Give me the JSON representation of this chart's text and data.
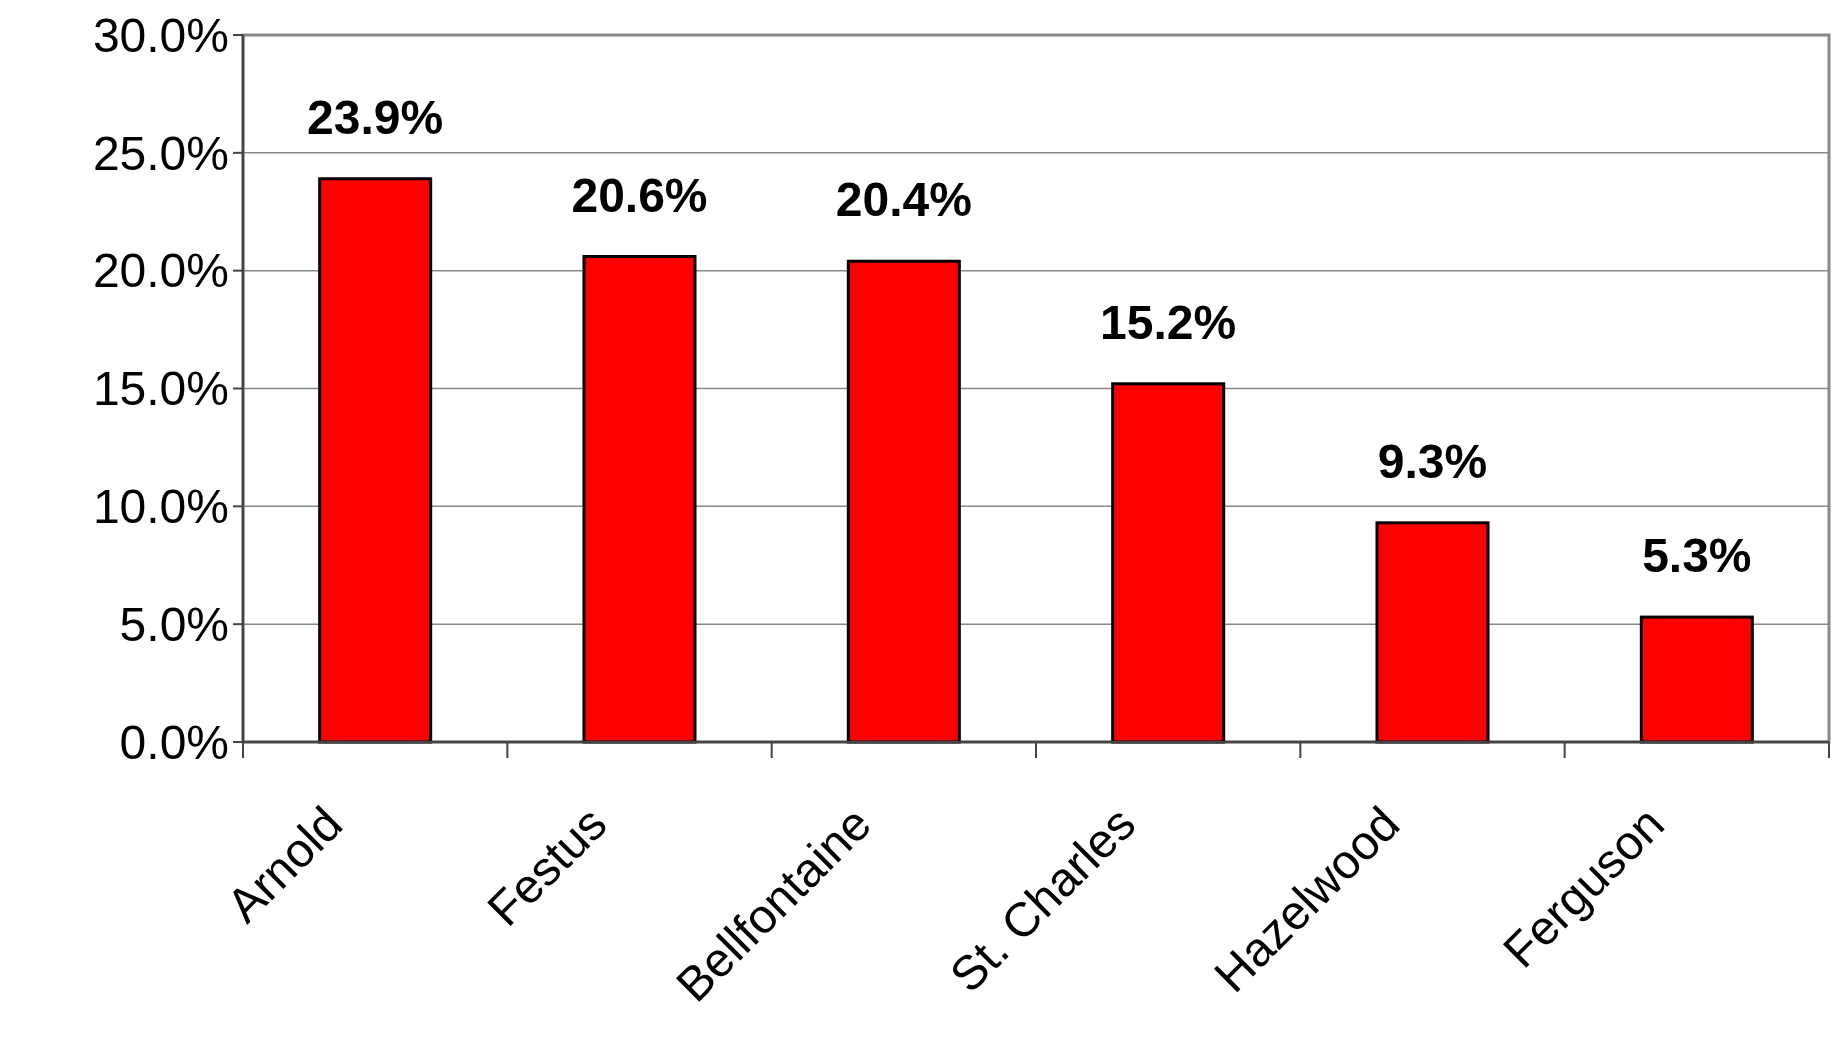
{
  "chart_data": {
    "type": "bar",
    "categories": [
      "Arnold",
      "Festus",
      "Bellfontaine",
      "St. Charles",
      "Hazelwood",
      "Ferguson"
    ],
    "values": [
      23.9,
      20.6,
      20.4,
      15.2,
      9.3,
      5.3
    ],
    "value_labels": [
      "23.9%",
      "20.6%",
      "20.4%",
      "15.2%",
      "9.3%",
      "5.3%"
    ],
    "color": "#ff0000",
    "ylim": [
      0,
      30
    ],
    "yticks": [
      {
        "value": 0,
        "label": "0.0%"
      },
      {
        "value": 5,
        "label": "5.0%"
      },
      {
        "value": 10,
        "label": "10.0%"
      },
      {
        "value": 15,
        "label": "15.0%"
      },
      {
        "value": 20,
        "label": "20.0%"
      },
      {
        "value": 25,
        "label": "25.0%"
      },
      {
        "value": 30,
        "label": "30.0%"
      }
    ],
    "grid": "y"
  }
}
